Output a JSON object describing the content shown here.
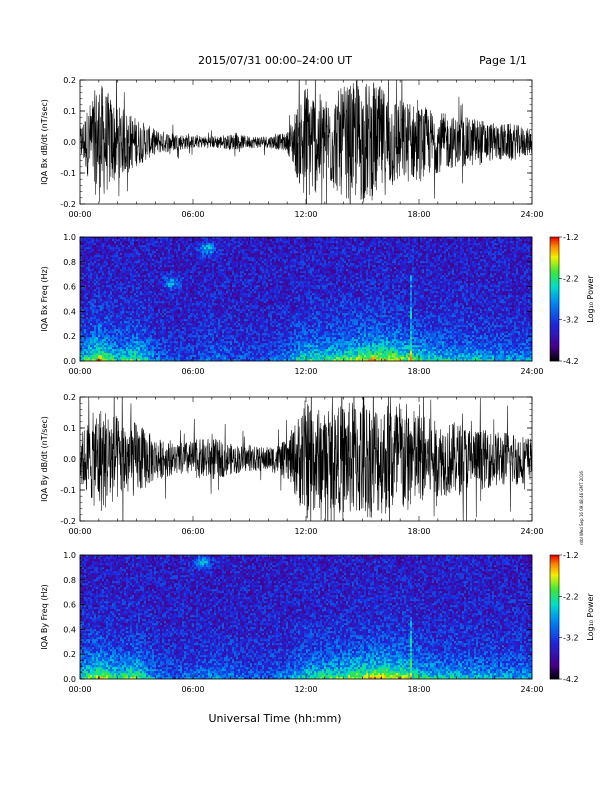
{
  "header": {
    "title": "2015/07/31  00:00–24:00 UT",
    "page": "Page 1/1",
    "timestamp": "ntbl Wed Sep 16 09:48:46 GMT 2016"
  },
  "xlabel": "Universal Time (hh:mm)",
  "colorbar_label": "Log₁₀ Power",
  "colors": {
    "trace": "#000000",
    "background": "#ffffff"
  },
  "chart_data": [
    {
      "type": "line",
      "ylabel": "IQA Bx dB/dt (nT/sec)",
      "ylim": [
        -0.2,
        0.2
      ],
      "y_ticks": [
        "0.2",
        "0.1",
        "0.0",
        "-0.1",
        "-0.2"
      ],
      "x_ticks": [
        "00:00",
        "06:00",
        "12:00",
        "18:00",
        "24:00"
      ],
      "x": [
        "00:00",
        "01:00",
        "02:00",
        "03:00",
        "04:00",
        "05:00",
        "06:00",
        "07:00",
        "08:00",
        "09:00",
        "10:00",
        "11:00",
        "12:00",
        "13:00",
        "14:00",
        "15:00",
        "16:00",
        "17:00",
        "18:00",
        "19:00",
        "20:00",
        "21:00",
        "22:00",
        "23:00",
        "24:00"
      ],
      "series": [
        {
          "amplitude": [
            0.05,
            0.2,
            0.12,
            0.08,
            0.04,
            0.03,
            0.02,
            0.02,
            0.025,
            0.02,
            0.02,
            0.03,
            0.2,
            0.14,
            0.18,
            0.2,
            0.18,
            0.14,
            0.12,
            0.1,
            0.08,
            0.08,
            0.06,
            0.06,
            0.04
          ]
        }
      ]
    },
    {
      "type": "heatmap",
      "ylabel": "IQA Bx Freq (Hz)",
      "ylim": [
        0.0,
        1.0
      ],
      "y_ticks": [
        "1.0",
        "0.8",
        "0.6",
        "0.4",
        "0.2",
        "0.0"
      ],
      "x_ticks": [
        "00:00",
        "06:00",
        "12:00",
        "18:00",
        "24:00"
      ],
      "colorbar": {
        "ticks": [
          "-1.2",
          "-2.2",
          "-3.2",
          "-4.2"
        ],
        "range": [
          -4.2,
          -1.2
        ]
      },
      "hour_activity": [
        0.5,
        0.95,
        0.55,
        0.75,
        0.3,
        0.2,
        0.2,
        0.3,
        0.25,
        0.2,
        0.2,
        0.35,
        0.65,
        0.65,
        0.75,
        0.85,
        0.95,
        0.8,
        0.65,
        0.55,
        0.5,
        0.5,
        0.45,
        0.4,
        0.4
      ],
      "bright_features": [
        {
          "label": "band",
          "time_hours": 6.8,
          "freq_hz": 0.91
        },
        {
          "label": "band",
          "time_hours": 4.9,
          "freq_hz": 0.63
        },
        {
          "label": "line",
          "time_hours": 17.6,
          "freq_hz": 0.7
        }
      ]
    },
    {
      "type": "line",
      "ylabel": "IQA By dB/dt (nT/sec)",
      "ylim": [
        -0.2,
        0.2
      ],
      "y_ticks": [
        "0.2",
        "0.1",
        "0.0",
        "-0.1",
        "-0.2"
      ],
      "x_ticks": [
        "00:00",
        "06:00",
        "12:00",
        "18:00",
        "24:00"
      ],
      "x": [
        "00:00",
        "01:00",
        "02:00",
        "03:00",
        "04:00",
        "05:00",
        "06:00",
        "07:00",
        "08:00",
        "09:00",
        "10:00",
        "11:00",
        "12:00",
        "13:00",
        "14:00",
        "15:00",
        "16:00",
        "17:00",
        "18:00",
        "19:00",
        "20:00",
        "21:00",
        "22:00",
        "23:00",
        "24:00"
      ],
      "series": [
        {
          "amplitude": [
            0.08,
            0.18,
            0.14,
            0.12,
            0.07,
            0.05,
            0.06,
            0.07,
            0.05,
            0.04,
            0.04,
            0.06,
            0.2,
            0.15,
            0.18,
            0.2,
            0.18,
            0.2,
            0.15,
            0.12,
            0.12,
            0.1,
            0.09,
            0.09,
            0.07
          ]
        }
      ]
    },
    {
      "type": "heatmap",
      "ylabel": "IQA By Freq (Hz)",
      "ylim": [
        0.0,
        1.0
      ],
      "y_ticks": [
        "1.0",
        "0.8",
        "0.6",
        "0.4",
        "0.2",
        "0.0"
      ],
      "x_ticks": [
        "00:00",
        "06:00",
        "12:00",
        "18:00",
        "24:00"
      ],
      "colorbar": {
        "ticks": [
          "-1.2",
          "-2.2",
          "-3.2",
          "-4.2"
        ],
        "range": [
          -4.2,
          -1.2
        ]
      },
      "hour_activity": [
        0.55,
        0.9,
        0.6,
        0.75,
        0.35,
        0.25,
        0.3,
        0.35,
        0.3,
        0.25,
        0.25,
        0.35,
        0.6,
        0.65,
        0.75,
        0.85,
        0.95,
        0.9,
        0.6,
        0.55,
        0.55,
        0.5,
        0.45,
        0.45,
        0.4
      ],
      "bright_features": [
        {
          "label": "band",
          "time_hours": 6.5,
          "freq_hz": 0.95
        },
        {
          "label": "line",
          "time_hours": 17.6,
          "freq_hz": 0.5
        }
      ]
    }
  ]
}
